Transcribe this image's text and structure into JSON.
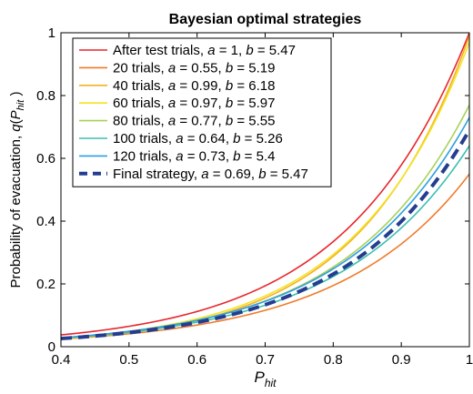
{
  "chart_data": {
    "type": "line",
    "title": "Bayesian optimal strategies",
    "xlabel": {
      "base": "P",
      "sub": "hit"
    },
    "ylabel": {
      "prefix": "Probability of evacuation, ",
      "fn": "q",
      "arg_base": "P",
      "arg_sub": "hit",
      "suffix": ")"
    },
    "xlim": [
      0.4,
      1
    ],
    "ylim": [
      0,
      1
    ],
    "xticks": [
      "0.4",
      "0.5",
      "0.6",
      "0.7",
      "0.8",
      "0.9",
      "1"
    ],
    "yticks": [
      "0",
      "0.2",
      "0.4",
      "0.6",
      "0.8",
      "1"
    ],
    "grid": false,
    "legend_position": "top-left",
    "model": "q(P_hit) = a * exp(b * (P_hit - 1))",
    "series": [
      {
        "label_prefix": "After test trials, ",
        "a": 1,
        "b": 5.47,
        "a_text": "1",
        "b_text": "5.47",
        "color": "#e8262b",
        "dashed": false
      },
      {
        "label_prefix": "20 trials, ",
        "a": 0.55,
        "b": 5.19,
        "a_text": "0.55",
        "b_text": "5.19",
        "color": "#f07a2a",
        "dashed": false
      },
      {
        "label_prefix": "40 trials, ",
        "a": 0.99,
        "b": 6.18,
        "a_text": "0.99",
        "b_text": "6.18",
        "color": "#f5b021",
        "dashed": false
      },
      {
        "label_prefix": "60 trials, ",
        "a": 0.97,
        "b": 5.97,
        "a_text": "0.97",
        "b_text": "5.97",
        "color": "#f2e422",
        "dashed": false
      },
      {
        "label_prefix": "80 trials, ",
        "a": 0.77,
        "b": 5.55,
        "a_text": "0.77",
        "b_text": "5.55",
        "color": "#a8d05a",
        "dashed": false
      },
      {
        "label_prefix": "100 trials, ",
        "a": 0.64,
        "b": 5.26,
        "a_text": "0.64",
        "b_text": "5.26",
        "color": "#3cbfb0",
        "dashed": false
      },
      {
        "label_prefix": "120 trials, ",
        "a": 0.73,
        "b": 5.4,
        "a_text": "0.73",
        "b_text": "5.4",
        "color": "#2c9fe0",
        "dashed": false
      },
      {
        "label_prefix": "Final strategy, ",
        "a": 0.69,
        "b": 5.47,
        "a_text": "0.69",
        "b_text": "5.47",
        "color": "#253d8f",
        "dashed": true
      }
    ]
  }
}
